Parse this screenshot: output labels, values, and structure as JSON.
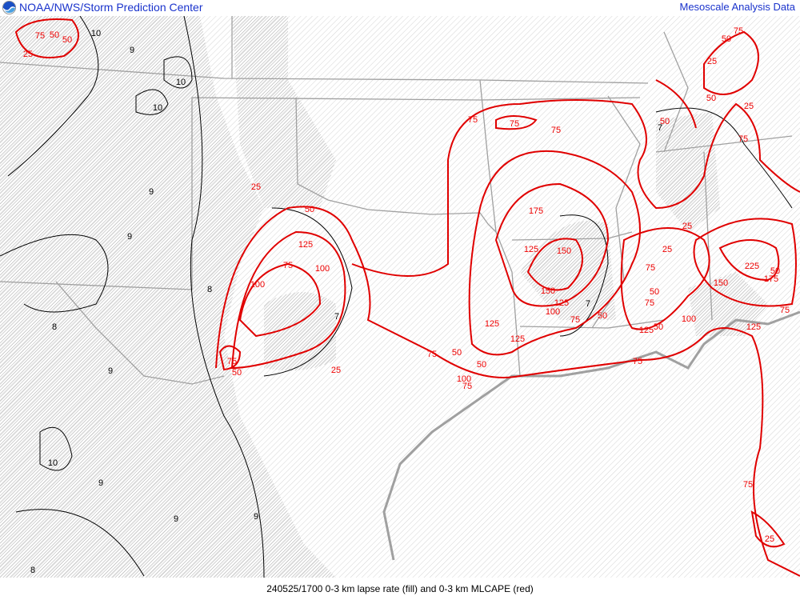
{
  "header": {
    "left_title": "NOAA/NWS/Storm Prediction Center",
    "right_title": "Mesoscale Analysis Data",
    "logo": "noaa-logo"
  },
  "footer": {
    "caption": "240525/1700 0-3 km lapse rate (fill) and 0-3 km MLCAPE (red)"
  },
  "colors": {
    "title": "#1a33cc",
    "cape_contour": "#e00000",
    "lapse_contour": "#000000",
    "borders": "#a0a0a0",
    "hatch": "#b8b8b8"
  },
  "cape_labels": [
    "75",
    "50",
    "50",
    "25",
    "25",
    "50",
    "125",
    "75",
    "100",
    "100",
    "75",
    "50",
    "25",
    "75",
    "75",
    "75",
    "75",
    "50",
    "50",
    "100",
    "75",
    "125",
    "125",
    "175",
    "125",
    "150",
    "150",
    "125",
    "100",
    "75",
    "50",
    "75",
    "50",
    "75",
    "25",
    "25",
    "125",
    "50",
    "100",
    "75",
    "50",
    "50",
    "25",
    "50",
    "75",
    "25",
    "75",
    "150",
    "225",
    "175",
    "50",
    "75",
    "125",
    "75",
    "25"
  ],
  "lapse_labels": [
    "10",
    "9",
    "10",
    "10",
    "9",
    "9",
    "8",
    "8",
    "9",
    "10",
    "9",
    "9",
    "9",
    "8",
    "7",
    "7",
    "7"
  ]
}
